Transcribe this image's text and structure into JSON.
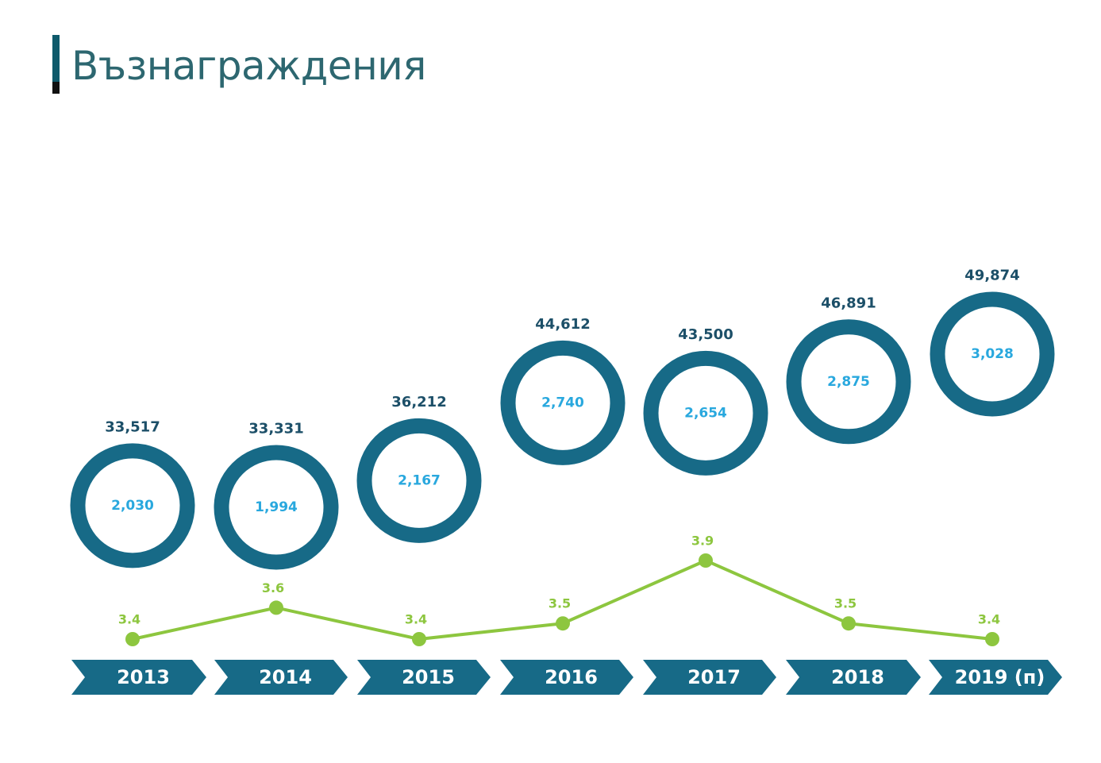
{
  "title": "Възнаграждения",
  "colors": {
    "title": "#2d6770",
    "ring": "#176a87",
    "top_label": "#1c4f68",
    "inner_label": "#29a8de",
    "line": "#8dc63f",
    "arrow": "#176a87"
  },
  "chart_data": {
    "type": "line",
    "categories": [
      "2013",
      "2014",
      "2015",
      "2016",
      "2017",
      "2018",
      "2019 (п)"
    ],
    "series": [
      {
        "values": [
          33517,
          33331,
          36212,
          44612,
          43500,
          46891,
          49874
        ],
        "labels": [
          "33,517",
          "33,331",
          "36,212",
          "44,612",
          "43,500",
          "46,891",
          "49,874"
        ],
        "shown_as": "ring position"
      },
      {
        "values": [
          2030,
          1994,
          2167,
          2740,
          2654,
          2875,
          3028
        ],
        "labels": [
          "2,030",
          "1,994",
          "2,167",
          "2,740",
          "2,654",
          "2,875",
          "3,028"
        ],
        "shown_as": "ring center"
      },
      {
        "values": [
          3.4,
          3.6,
          3.4,
          3.5,
          3.9,
          3.5,
          3.4
        ],
        "labels": [
          "3.4",
          "3.6",
          "3.4",
          "3.5",
          "3.9",
          "3.5",
          "3.4"
        ],
        "shown_as": "line with markers"
      }
    ],
    "grid": false,
    "legend": "none"
  }
}
